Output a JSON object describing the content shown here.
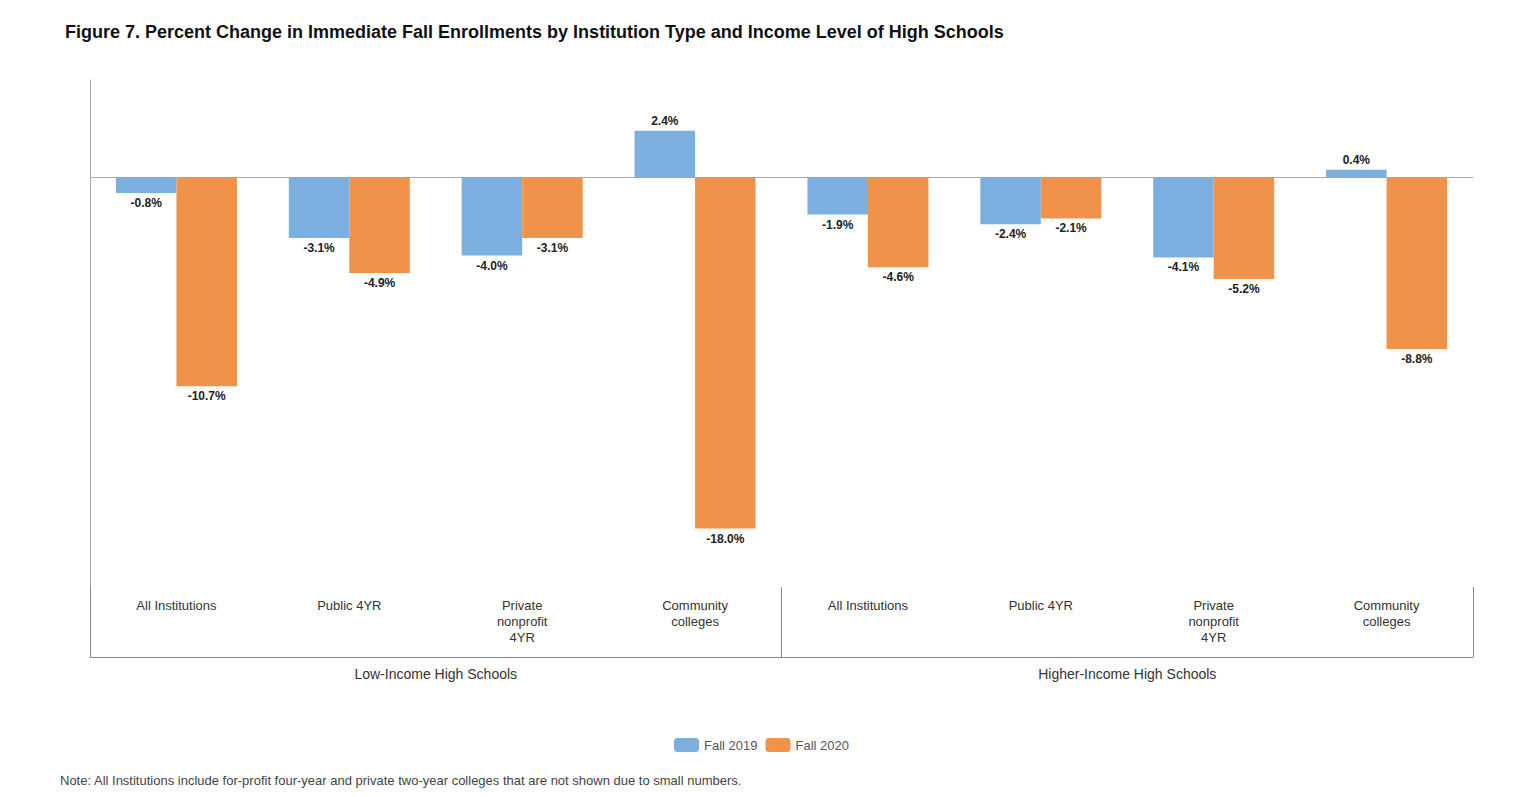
{
  "chart_data": {
    "type": "bar",
    "title": "Figure 7. Percent Change in Immediate Fall Enrollments by Institution Type and Income Level of High Schools",
    "categories": [
      "All Institutions",
      "Public 4YR",
      "Private\nnonprofit\n4YR",
      "Community\ncolleges",
      "All Institutions",
      "Public 4YR",
      "Private\nnonprofit\n4YR",
      "Community\ncolleges"
    ],
    "group_labels": [
      "Low-Income High Schools",
      "Higher-Income High Schools"
    ],
    "series": [
      {
        "name": "Fall 2019",
        "color": "#7aafe0",
        "values": [
          -0.8,
          -3.1,
          -4.0,
          2.4,
          -1.9,
          -2.4,
          -4.1,
          0.4
        ],
        "value_labels": [
          "-0.8%",
          "-3.1%",
          "-4.0%",
          "2.4%",
          "-1.9%",
          "-2.4%",
          "-4.1%",
          "0.4%"
        ]
      },
      {
        "name": "Fall 2020",
        "color": "#f0924a",
        "values": [
          -10.7,
          -4.9,
          -3.1,
          -18.0,
          -4.6,
          -2.1,
          -5.2,
          -8.8
        ],
        "value_labels": [
          "-10.7%",
          "-4.9%",
          "-3.1%",
          "-18.0%",
          "-4.6%",
          "-2.1%",
          "-5.2%",
          "-8.8%"
        ]
      }
    ],
    "ylim": [
      -21,
      5
    ],
    "tick_labels": "x",
    "grid": false,
    "data_labels": true,
    "legend": "bottom",
    "note": "Note: All Institutions include for-profit four-year and private two-year colleges that are not shown due to small numbers."
  }
}
